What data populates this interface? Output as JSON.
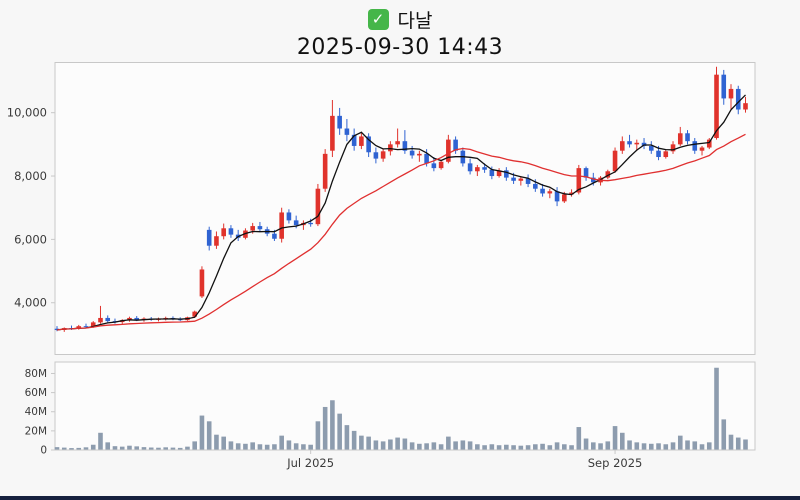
{
  "header": {
    "check_icon": "✓",
    "stock_name": "다날",
    "timestamp": "2025-09-30 14:43"
  },
  "chart_data": {
    "type": "candlestick",
    "title": "다날 2025-09-30 14:43",
    "legend_position": "none",
    "grid": false,
    "price_axis": {
      "ticks": [
        4000,
        6000,
        8000,
        10000
      ],
      "tick_labels": [
        "4,000",
        "6,000",
        "8,000",
        "10,000"
      ],
      "range": [
        2350,
        11600
      ]
    },
    "volume_axis": {
      "ticks": [
        0,
        20,
        40,
        60,
        80
      ],
      "tick_labels": [
        "0",
        "20M",
        "40M",
        "60M",
        "80M"
      ],
      "range": [
        0,
        92
      ],
      "unit": "M"
    },
    "x_axis": {
      "tick_labels": [
        "Jul 2025",
        "Sep 2025"
      ],
      "tick_indices": [
        35,
        77
      ]
    },
    "overlays": [
      {
        "name": "ma-short",
        "window": 5,
        "color": "#111111"
      },
      {
        "name": "ma-long",
        "window": 20,
        "color": "#e03030"
      }
    ],
    "colors": {
      "up": "#e0332c",
      "down": "#2f63d2",
      "volume": "#8d9cae",
      "plot_bg": "#fcfcfc",
      "plot_border": "#c8c8c8",
      "tick_text": "#3a3a3a"
    },
    "candles": [
      [
        3180,
        3260,
        3100,
        3140
      ],
      [
        3140,
        3220,
        3080,
        3200
      ],
      [
        3200,
        3280,
        3140,
        3180
      ],
      [
        3180,
        3300,
        3150,
        3260
      ],
      [
        3260,
        3340,
        3200,
        3230
      ],
      [
        3230,
        3420,
        3210,
        3380
      ],
      [
        3380,
        3900,
        3340,
        3520
      ],
      [
        3520,
        3600,
        3380,
        3420
      ],
      [
        3420,
        3500,
        3340,
        3390
      ],
      [
        3390,
        3480,
        3330,
        3450
      ],
      [
        3450,
        3560,
        3400,
        3520
      ],
      [
        3520,
        3580,
        3420,
        3460
      ],
      [
        3460,
        3540,
        3400,
        3500
      ],
      [
        3500,
        3550,
        3430,
        3470
      ],
      [
        3470,
        3530,
        3410,
        3490
      ],
      [
        3490,
        3560,
        3440,
        3520
      ],
      [
        3520,
        3570,
        3450,
        3480
      ],
      [
        3480,
        3540,
        3420,
        3450
      ],
      [
        3450,
        3560,
        3430,
        3540
      ],
      [
        3560,
        3750,
        3520,
        3720
      ],
      [
        4200,
        5150,
        4150,
        5050
      ],
      [
        6300,
        6400,
        5650,
        5800
      ],
      [
        5800,
        6250,
        5700,
        6100
      ],
      [
        6100,
        6500,
        6000,
        6350
      ],
      [
        6350,
        6450,
        6050,
        6150
      ],
      [
        6150,
        6300,
        5950,
        6050
      ],
      [
        6050,
        6350,
        6000,
        6280
      ],
      [
        6280,
        6520,
        6180,
        6420
      ],
      [
        6420,
        6550,
        6250,
        6320
      ],
      [
        6320,
        6400,
        6100,
        6180
      ],
      [
        6180,
        6300,
        5950,
        6020
      ],
      [
        6020,
        7000,
        5900,
        6850
      ],
      [
        6850,
        6950,
        6500,
        6600
      ],
      [
        6600,
        6750,
        6350,
        6450
      ],
      [
        6450,
        6600,
        6300,
        6520
      ],
      [
        6520,
        6650,
        6400,
        6480
      ],
      [
        6480,
        7750,
        6420,
        7600
      ],
      [
        7600,
        8850,
        7500,
        8700
      ],
      [
        8800,
        10400,
        8600,
        9900
      ],
      [
        9900,
        10150,
        9300,
        9500
      ],
      [
        9500,
        9800,
        9100,
        9300
      ],
      [
        9300,
        9500,
        8800,
        8950
      ],
      [
        8950,
        9400,
        8850,
        9250
      ],
      [
        9250,
        9350,
        8600,
        8750
      ],
      [
        8750,
        8900,
        8400,
        8550
      ],
      [
        8550,
        8850,
        8450,
        8780
      ],
      [
        8780,
        9100,
        8650,
        9000
      ],
      [
        9000,
        9500,
        8900,
        9100
      ],
      [
        9100,
        9450,
        8700,
        8800
      ],
      [
        8800,
        8950,
        8550,
        8650
      ],
      [
        8650,
        8800,
        8450,
        8700
      ],
      [
        8700,
        8850,
        8300,
        8400
      ],
      [
        8400,
        8600,
        8150,
        8250
      ],
      [
        8250,
        8500,
        8200,
        8450
      ],
      [
        8450,
        9300,
        8400,
        9150
      ],
      [
        9150,
        9250,
        8700,
        8800
      ],
      [
        8800,
        8900,
        8300,
        8400
      ],
      [
        8400,
        8550,
        8050,
        8150
      ],
      [
        8150,
        8350,
        8000,
        8280
      ],
      [
        8280,
        8400,
        8100,
        8200
      ],
      [
        8200,
        8300,
        7900,
        8000
      ],
      [
        8000,
        8250,
        7950,
        8180
      ],
      [
        8180,
        8280,
        7850,
        7950
      ],
      [
        7950,
        8100,
        7750,
        7850
      ],
      [
        7850,
        8000,
        7700,
        7920
      ],
      [
        7920,
        8050,
        7650,
        7750
      ],
      [
        7750,
        7900,
        7500,
        7600
      ],
      [
        7600,
        7750,
        7350,
        7450
      ],
      [
        7450,
        7600,
        7300,
        7520
      ],
      [
        7520,
        7650,
        7050,
        7200
      ],
      [
        7200,
        7500,
        7150,
        7420
      ],
      [
        7420,
        7580,
        7350,
        7480
      ],
      [
        7480,
        8350,
        7420,
        8250
      ],
      [
        8250,
        8300,
        7850,
        7950
      ],
      [
        7950,
        8100,
        7700,
        7800
      ],
      [
        7800,
        8000,
        7700,
        7950
      ],
      [
        7950,
        8200,
        7900,
        8150
      ],
      [
        8150,
        8900,
        8100,
        8800
      ],
      [
        8800,
        9250,
        8700,
        9100
      ],
      [
        9100,
        9300,
        8900,
        9000
      ],
      [
        9000,
        9150,
        8800,
        9050
      ],
      [
        9050,
        9200,
        8850,
        8950
      ],
      [
        8950,
        9100,
        8700,
        8800
      ],
      [
        8800,
        8950,
        8500,
        8600
      ],
      [
        8600,
        8850,
        8550,
        8780
      ],
      [
        8780,
        9100,
        8700,
        9000
      ],
      [
        9000,
        9550,
        8950,
        9350
      ],
      [
        9350,
        9450,
        9000,
        9100
      ],
      [
        9100,
        9200,
        8700,
        8800
      ],
      [
        8800,
        8950,
        8650,
        8900
      ],
      [
        8900,
        9200,
        8850,
        9150
      ],
      [
        9200,
        11450,
        9150,
        11200
      ],
      [
        11200,
        11350,
        10250,
        10450
      ],
      [
        10450,
        10900,
        10100,
        10750
      ],
      [
        10750,
        10850,
        9950,
        10100
      ],
      [
        10100,
        10500,
        10000,
        10300
      ]
    ],
    "volumes_m": [
      3,
      2.5,
      2,
      2.2,
      2.8,
      5.5,
      18,
      8,
      4,
      3.5,
      4.5,
      3.8,
      3,
      2.6,
      2.4,
      2.8,
      2.5,
      2.2,
      3.5,
      9,
      36,
      30,
      16,
      14,
      9,
      7,
      6.5,
      8,
      6,
      5.5,
      6,
      15,
      10,
      7,
      6,
      5.5,
      30,
      45,
      52,
      38,
      26,
      20,
      15,
      14,
      10,
      9,
      11,
      13,
      12,
      8,
      6.5,
      7,
      8,
      6,
      14,
      9,
      10,
      9,
      6,
      5,
      6,
      5,
      5.5,
      5,
      4.5,
      5,
      6,
      6.5,
      5,
      8,
      6,
      5,
      24,
      12,
      8,
      7,
      9,
      25,
      18,
      10,
      8,
      7,
      6.5,
      7,
      6,
      8,
      15,
      10,
      9,
      6,
      8,
      86,
      32,
      16,
      13,
      11
    ]
  }
}
